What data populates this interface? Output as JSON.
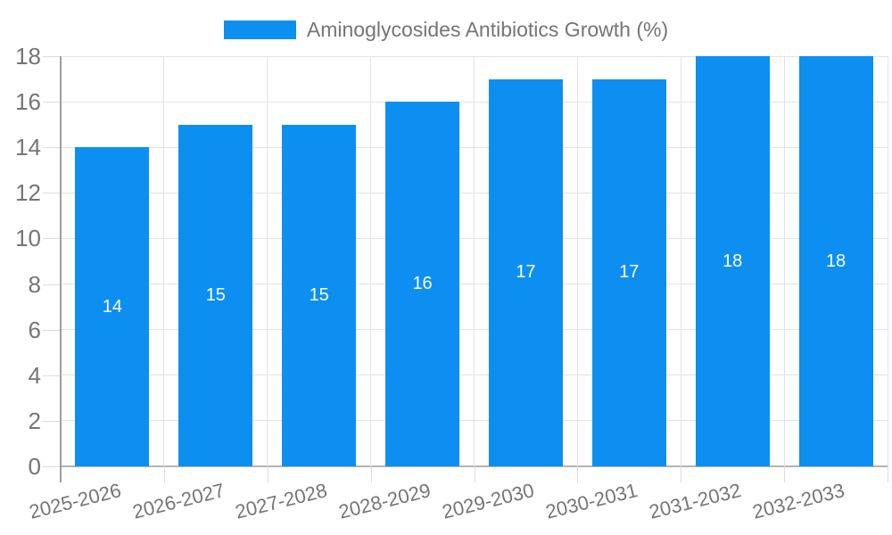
{
  "legend": {
    "label": "Aminoglycosides Antibiotics Growth (%)"
  },
  "chart_data": {
    "type": "bar",
    "title": "",
    "series_name": "Aminoglycosides Antibiotics Growth (%)",
    "categories": [
      "2025-2026",
      "2026-2027",
      "2027-2028",
      "2028-2029",
      "2029-2030",
      "2030-2031",
      "2031-2032",
      "2032-2033"
    ],
    "values": [
      14,
      15,
      15,
      16,
      17,
      17,
      18,
      18
    ],
    "value_labels": [
      "14",
      "15",
      "15",
      "16",
      "17",
      "17",
      "18",
      "18"
    ],
    "xlabel": "",
    "ylabel": "",
    "ylim": [
      0,
      18
    ],
    "yticks": [
      0,
      2,
      4,
      6,
      8,
      10,
      12,
      14,
      16,
      18
    ],
    "grid": true,
    "legend_position": "top",
    "x_label_rotation_deg": -14
  },
  "colors": {
    "background": "#ffffff",
    "bar": "#0d8ff2",
    "grid_line": "#e3e3e3",
    "zero_line": "#b3b3b3",
    "axis_line": "#9e9e9e",
    "tick": "#dcdcdc",
    "text": "#757575",
    "bar_label": "#ffffff"
  }
}
